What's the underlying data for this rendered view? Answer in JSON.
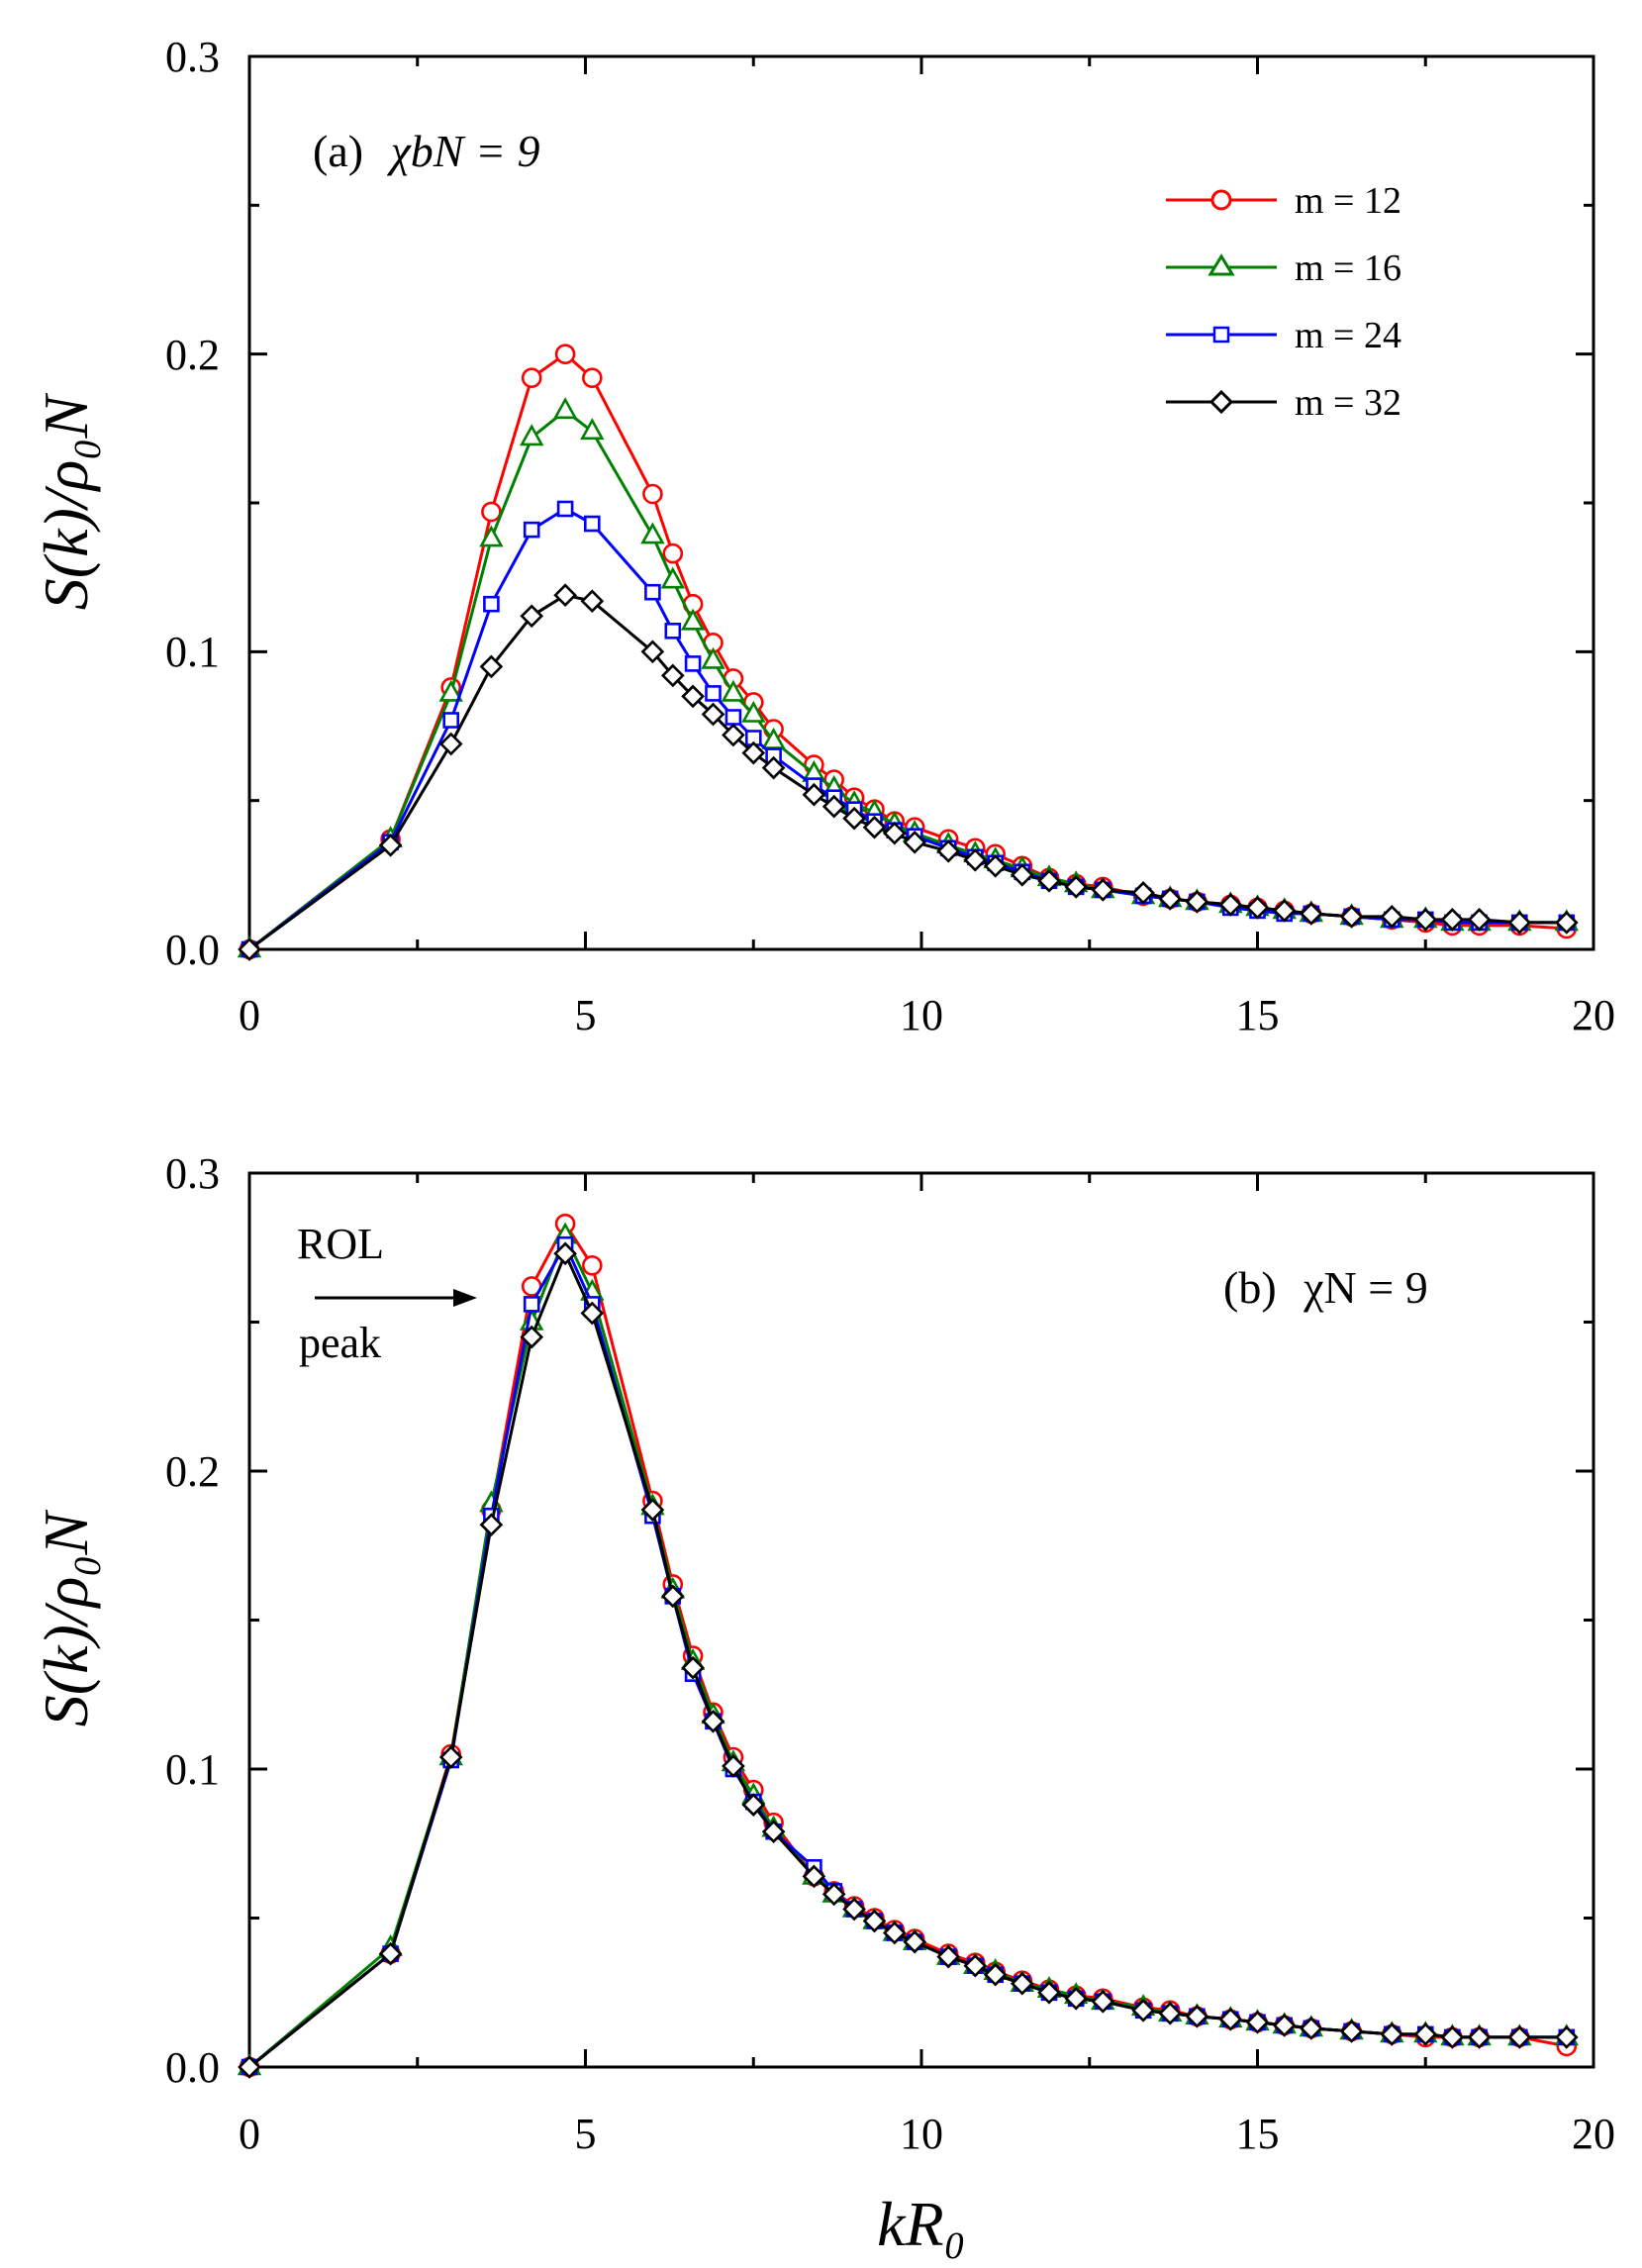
{
  "figure": {
    "x_axis_title": "kR₀",
    "y_axis_title": "S(k)/ρ₀N"
  },
  "legend": [
    {
      "label": "m = 12",
      "color": "#ff0000",
      "marker": "circle"
    },
    {
      "label": "m = 16",
      "color": "#008000",
      "marker": "triangle"
    },
    {
      "label": "m = 24",
      "color": "#0000ff",
      "marker": "square"
    },
    {
      "label": "m = 32",
      "color": "#000000",
      "marker": "diamond"
    }
  ],
  "chart_data": [
    {
      "type": "line",
      "panel_label": "(a)  χbN = 9",
      "panel_label_prefix": "(a)",
      "panel_label_math": "χbN = 9",
      "xlabel": "",
      "ylabel": "S(k)/ρ₀N",
      "xlim": [
        0,
        20
      ],
      "ylim": [
        0,
        0.3
      ],
      "x_ticks": [
        "0",
        "5",
        "10",
        "15",
        "20"
      ],
      "y_ticks": [
        "0.0",
        "0.1",
        "0.2",
        "0.3"
      ],
      "x": [
        0,
        2.1,
        3.0,
        3.6,
        4.2,
        4.7,
        5.1,
        6.0,
        6.3,
        6.6,
        6.9,
        7.2,
        7.5,
        7.8,
        8.4,
        8.7,
        9.0,
        9.3,
        9.6,
        9.9,
        10.4,
        10.8,
        11.1,
        11.5,
        11.9,
        12.3,
        12.7,
        13.3,
        13.7,
        14.1,
        14.6,
        15.0,
        15.4,
        15.8,
        16.4,
        17.0,
        17.5,
        17.9,
        18.3,
        18.9,
        19.6
      ],
      "series": [
        {
          "name": "m = 12",
          "values": [
            0,
            0.037,
            0.088,
            0.147,
            0.192,
            0.2,
            0.192,
            0.153,
            0.133,
            0.116,
            0.103,
            0.091,
            0.083,
            0.074,
            0.062,
            0.057,
            0.051,
            0.047,
            0.043,
            0.041,
            0.037,
            0.034,
            0.032,
            0.028,
            0.024,
            0.022,
            0.021,
            0.018,
            0.017,
            0.016,
            0.015,
            0.014,
            0.013,
            0.012,
            0.011,
            0.01,
            0.009,
            0.008,
            0.008,
            0.008,
            0.007
          ]
        },
        {
          "name": "m = 16",
          "values": [
            0,
            0.037,
            0.086,
            0.138,
            0.172,
            0.181,
            0.174,
            0.139,
            0.124,
            0.11,
            0.097,
            0.086,
            0.079,
            0.07,
            0.059,
            0.054,
            0.049,
            0.046,
            0.042,
            0.039,
            0.035,
            0.032,
            0.03,
            0.027,
            0.024,
            0.022,
            0.02,
            0.018,
            0.017,
            0.016,
            0.015,
            0.014,
            0.013,
            0.012,
            0.011,
            0.01,
            0.01,
            0.009,
            0.009,
            0.009,
            0.009
          ]
        },
        {
          "name": "m = 24",
          "values": [
            0,
            0.036,
            0.077,
            0.116,
            0.141,
            0.148,
            0.143,
            0.12,
            0.107,
            0.096,
            0.086,
            0.078,
            0.071,
            0.065,
            0.055,
            0.051,
            0.047,
            0.043,
            0.04,
            0.038,
            0.034,
            0.031,
            0.029,
            0.026,
            0.023,
            0.021,
            0.02,
            0.018,
            0.017,
            0.016,
            0.014,
            0.013,
            0.012,
            0.012,
            0.011,
            0.01,
            0.01,
            0.009,
            0.009,
            0.009,
            0.009
          ]
        },
        {
          "name": "m = 32",
          "values": [
            0,
            0.035,
            0.069,
            0.095,
            0.112,
            0.119,
            0.117,
            0.1,
            0.092,
            0.085,
            0.079,
            0.072,
            0.066,
            0.061,
            0.052,
            0.048,
            0.044,
            0.041,
            0.039,
            0.036,
            0.033,
            0.03,
            0.028,
            0.025,
            0.023,
            0.021,
            0.02,
            0.019,
            0.017,
            0.016,
            0.015,
            0.014,
            0.013,
            0.012,
            0.011,
            0.011,
            0.01,
            0.01,
            0.01,
            0.009,
            0.009
          ]
        }
      ]
    },
    {
      "type": "line",
      "panel_label": "(b)  χN = 9",
      "panel_label_prefix": "(b)",
      "panel_label_math": "χN = 9",
      "annotation": [
        "ROL",
        "peak"
      ],
      "xlabel": "kR₀",
      "ylabel": "S(k)/ρ₀N",
      "xlim": [
        0,
        20
      ],
      "ylim": [
        0,
        0.3
      ],
      "x_ticks": [
        "0",
        "5",
        "10",
        "15",
        "20"
      ],
      "y_ticks": [
        "0.0",
        "0.1",
        "0.2",
        "0.3"
      ],
      "x": [
        0,
        2.1,
        3.0,
        3.6,
        4.2,
        4.7,
        5.1,
        6.0,
        6.3,
        6.6,
        6.9,
        7.2,
        7.5,
        7.8,
        8.4,
        8.7,
        9.0,
        9.3,
        9.6,
        9.9,
        10.4,
        10.8,
        11.1,
        11.5,
        11.9,
        12.3,
        12.7,
        13.3,
        13.7,
        14.1,
        14.6,
        15.0,
        15.4,
        15.8,
        16.4,
        17.0,
        17.5,
        17.9,
        18.3,
        18.9,
        19.6
      ],
      "series": [
        {
          "name": "m = 12",
          "values": [
            0,
            0.038,
            0.105,
            0.187,
            0.262,
            0.283,
            0.269,
            0.19,
            0.162,
            0.138,
            0.119,
            0.104,
            0.093,
            0.082,
            0.064,
            0.059,
            0.054,
            0.05,
            0.046,
            0.043,
            0.038,
            0.035,
            0.032,
            0.029,
            0.026,
            0.024,
            0.023,
            0.02,
            0.019,
            0.017,
            0.016,
            0.015,
            0.014,
            0.013,
            0.012,
            0.011,
            0.01,
            0.01,
            0.01,
            0.01,
            0.007
          ]
        },
        {
          "name": "m = 16",
          "values": [
            0,
            0.04,
            0.104,
            0.189,
            0.25,
            0.279,
            0.26,
            0.188,
            0.16,
            0.136,
            0.118,
            0.102,
            0.091,
            0.08,
            0.064,
            0.058,
            0.053,
            0.049,
            0.045,
            0.042,
            0.037,
            0.034,
            0.032,
            0.028,
            0.026,
            0.024,
            0.022,
            0.02,
            0.018,
            0.017,
            0.016,
            0.015,
            0.014,
            0.013,
            0.012,
            0.011,
            0.011,
            0.01,
            0.01,
            0.01,
            0.01
          ]
        },
        {
          "name": "m = 24",
          "values": [
            0,
            0.038,
            0.103,
            0.185,
            0.256,
            0.276,
            0.256,
            0.185,
            0.158,
            0.132,
            0.116,
            0.1,
            0.089,
            0.079,
            0.067,
            0.059,
            0.053,
            0.049,
            0.045,
            0.042,
            0.037,
            0.034,
            0.031,
            0.028,
            0.025,
            0.023,
            0.022,
            0.019,
            0.018,
            0.017,
            0.016,
            0.015,
            0.014,
            0.013,
            0.012,
            0.011,
            0.011,
            0.01,
            0.01,
            0.01,
            0.01
          ]
        },
        {
          "name": "m = 32",
          "values": [
            0,
            0.038,
            0.104,
            0.182,
            0.245,
            0.273,
            0.253,
            0.187,
            0.158,
            0.134,
            0.116,
            0.101,
            0.088,
            0.079,
            0.064,
            0.058,
            0.053,
            0.049,
            0.045,
            0.042,
            0.037,
            0.034,
            0.031,
            0.028,
            0.025,
            0.023,
            0.022,
            0.019,
            0.018,
            0.017,
            0.016,
            0.015,
            0.014,
            0.013,
            0.012,
            0.011,
            0.011,
            0.01,
            0.01,
            0.01,
            0.01
          ]
        }
      ]
    }
  ]
}
